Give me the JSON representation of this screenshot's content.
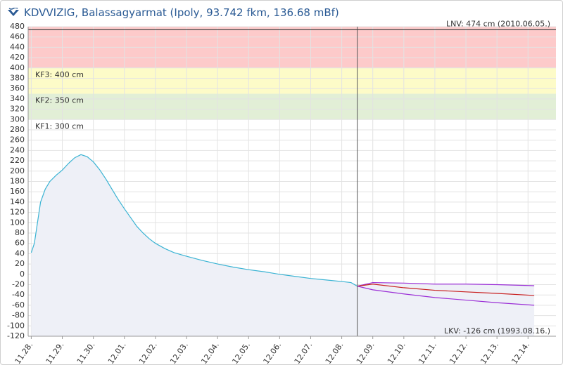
{
  "chart_data": {
    "type": "line",
    "title": "KDVVIZIG, Balassagyarmat (Ipoly, 93.742 fkm, 136.68 mBf)",
    "xlim": [
      -0.1,
      16.9
    ],
    "xticks": [
      {
        "value": 0,
        "label": "11.28."
      },
      {
        "value": 1,
        "label": "11.29."
      },
      {
        "value": 2,
        "label": "11.30."
      },
      {
        "value": 3,
        "label": "12.01."
      },
      {
        "value": 4,
        "label": "12.02."
      },
      {
        "value": 5,
        "label": "12.03."
      },
      {
        "value": 6,
        "label": "12.04."
      },
      {
        "value": 7,
        "label": "12.05."
      },
      {
        "value": 8,
        "label": "12.06."
      },
      {
        "value": 9,
        "label": "12.07."
      },
      {
        "value": 10,
        "label": "12.08."
      },
      {
        "value": 11,
        "label": "12.09."
      },
      {
        "value": 12,
        "label": "12.10."
      },
      {
        "value": 13,
        "label": "12.11."
      },
      {
        "value": 14,
        "label": "12.12."
      },
      {
        "value": 15,
        "label": "12.13."
      },
      {
        "value": 16,
        "label": "12.14."
      }
    ],
    "ylim": [
      -120,
      480
    ],
    "yticks": [
      -120,
      -100,
      -80,
      -60,
      -40,
      -20,
      0,
      20,
      40,
      60,
      80,
      100,
      120,
      140,
      160,
      180,
      200,
      220,
      240,
      260,
      280,
      300,
      320,
      340,
      360,
      380,
      400,
      420,
      440,
      460,
      480
    ],
    "grid": true,
    "thresholds": [
      {
        "label": "KF1: 300 cm",
        "value": 300,
        "color": "#e2efd6"
      },
      {
        "label": "KF2: 350 cm",
        "value": 350,
        "color": "#fdfbc8"
      },
      {
        "label": "KF3: 400 cm",
        "value": 400,
        "color": "#fdcaca"
      }
    ],
    "record_high": {
      "label": "LNV: 474 cm (2010.06.05.)",
      "value": 474
    },
    "record_low": {
      "label": "LKV: -126 cm (1993.08.16.)",
      "value": -126
    },
    "series": [
      {
        "color": "#3ab3d3",
        "area": true,
        "x": [
          0,
          0.1,
          0.2,
          0.3,
          0.45,
          0.6,
          0.8,
          1.0,
          1.2,
          1.4,
          1.6,
          1.8,
          2.0,
          2.2,
          2.4,
          2.6,
          2.8,
          3.0,
          3.2,
          3.4,
          3.6,
          3.8,
          4.0,
          4.3,
          4.6,
          5.0,
          5.5,
          6.0,
          6.5,
          7.0,
          7.5,
          8.0,
          8.5,
          9.0,
          9.5,
          10.0,
          10.3,
          10.5
        ],
        "values": [
          42,
          60,
          100,
          140,
          165,
          180,
          192,
          202,
          215,
          226,
          232,
          228,
          218,
          203,
          185,
          165,
          145,
          127,
          110,
          93,
          80,
          69,
          60,
          50,
          42,
          35,
          27,
          20,
          14,
          9,
          5,
          0,
          -4,
          -8,
          -11,
          -14,
          -16,
          -23
        ]
      },
      {
        "color": "#9b2fd6",
        "area": true,
        "x": [
          10.5,
          11,
          12,
          13,
          14,
          15,
          16.2
        ],
        "values": [
          -23,
          -16,
          -17,
          -19,
          -19,
          -20,
          -22
        ]
      },
      {
        "color": "#c81e1e",
        "x": [
          10.5,
          11,
          12,
          13,
          14,
          15,
          16.2
        ],
        "values": [
          -23,
          -19,
          -26,
          -31,
          -34,
          -37,
          -41
        ]
      },
      {
        "color": "#9b2fd6",
        "x": [
          10.5,
          11,
          12,
          13,
          14,
          15,
          16.2
        ],
        "values": [
          -23,
          -30,
          -38,
          -45,
          -50,
          -55,
          -60
        ]
      }
    ]
  }
}
